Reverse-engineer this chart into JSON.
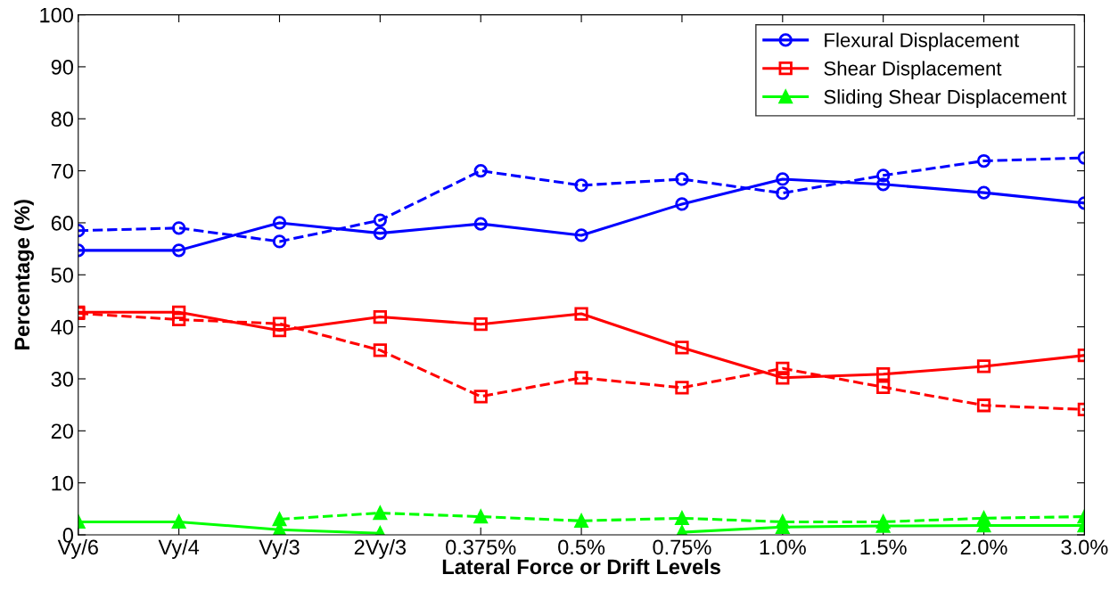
{
  "chart_data": {
    "type": "line",
    "xlabel": "Lateral Force or Drift Levels",
    "ylabel": "Percentage (%)",
    "categories": [
      "Vy/6",
      "Vy/4",
      "Vy/3",
      "2Vy/3",
      "0.375%",
      "0.5%",
      "0.75%",
      "1.0%",
      "1.5%",
      "2.0%",
      "3.0%"
    ],
    "ylim": [
      0,
      100
    ],
    "yticks": [
      0,
      10,
      20,
      30,
      40,
      50,
      60,
      70,
      80,
      90,
      100
    ],
    "grid": false,
    "legend": "top right",
    "series": [
      {
        "name": "Flexural Displacement",
        "color": "#0000ff",
        "marker": "circle",
        "line_style": "solid",
        "values": [
          54.7,
          54.7,
          60.0,
          58.0,
          59.8,
          57.6,
          63.6,
          68.4,
          67.4,
          65.8,
          63.8
        ]
      },
      {
        "name": "Shear Displacement",
        "color": "#ff0000",
        "marker": "square",
        "line_style": "solid",
        "values": [
          42.8,
          42.8,
          39.3,
          41.9,
          40.5,
          42.5,
          36.0,
          30.2,
          30.9,
          32.4,
          34.5
        ]
      },
      {
        "name": "Sliding Shear Displacement",
        "color": "#00ff00",
        "marker": "triangle",
        "line_style": "solid",
        "values": [
          2.5,
          2.5,
          1.0,
          0.3,
          null,
          null,
          0.5,
          1.5,
          1.7,
          1.8,
          1.8
        ]
      },
      {
        "color": "#0000ff",
        "marker": "circle",
        "line_style": "dashed",
        "values": [
          58.5,
          59.0,
          56.4,
          60.5,
          70.0,
          67.2,
          68.4,
          65.7,
          69.1,
          71.9,
          72.5
        ]
      },
      {
        "color": "#ff0000",
        "marker": "square",
        "line_style": "dashed",
        "values": [
          42.6,
          41.4,
          40.6,
          35.5,
          26.6,
          30.2,
          28.3,
          32.0,
          28.4,
          24.9,
          24.1
        ]
      },
      {
        "color": "#00ff00",
        "marker": "triangle",
        "line_style": "dashed",
        "values": [
          null,
          null,
          3.0,
          4.2,
          3.5,
          2.7,
          3.2,
          2.5,
          2.5,
          3.2,
          3.5
        ]
      }
    ]
  }
}
